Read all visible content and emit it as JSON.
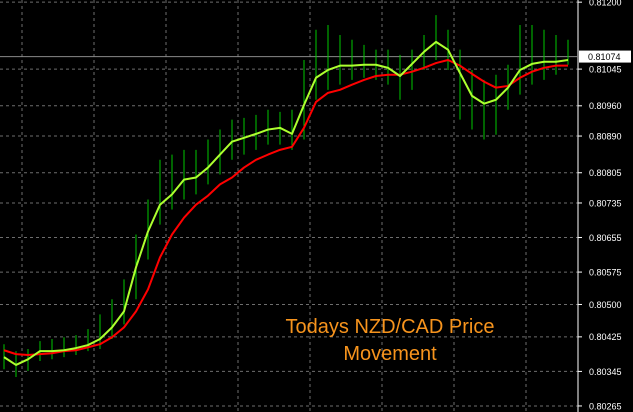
{
  "chart_data": {
    "type": "line",
    "annotation": "Todays NZD/CAD Price Movement",
    "categories": [
      null,
      null,
      null,
      null,
      null,
      null,
      null,
      null,
      null,
      null,
      null,
      null,
      null,
      null,
      null,
      null,
      null,
      null,
      null,
      null,
      null,
      null,
      null,
      null,
      null,
      null,
      null,
      null,
      null,
      null,
      null,
      null,
      null,
      null,
      null,
      null,
      null,
      null,
      null,
      null,
      null,
      null,
      null,
      null,
      null,
      null,
      null,
      null
    ],
    "bars": {
      "color": "#00c800",
      "high": [
        0.80408,
        0.80392,
        0.80397,
        0.80415,
        0.8042,
        0.80424,
        0.80429,
        0.80443,
        0.80477,
        0.80512,
        0.80558,
        0.80662,
        0.80743,
        0.80835,
        0.80847,
        0.80858,
        0.80858,
        0.80882,
        0.80905,
        0.80928,
        0.80932,
        0.80939,
        0.80951,
        0.80946,
        0.80951,
        0.81066,
        0.81136,
        0.81147,
        0.81124,
        0.81113,
        0.81101,
        0.8109,
        0.8109,
        0.81078,
        0.8109,
        0.81124,
        0.8117,
        0.81136,
        0.8109,
        0.81043,
        0.8102,
        0.81032,
        0.81055,
        0.81147,
        0.81147,
        0.81136,
        0.81124,
        0.81113
      ],
      "low": [
        0.8035,
        0.80332,
        0.80346,
        0.80369,
        0.80373,
        0.80378,
        0.80383,
        0.80392,
        0.80397,
        0.8042,
        0.80454,
        0.80512,
        0.80604,
        0.80685,
        0.8072,
        0.80743,
        0.80755,
        0.80778,
        0.80801,
        0.80835,
        0.80847,
        0.80858,
        0.8087,
        0.8087,
        0.80858,
        0.80882,
        0.80974,
        0.80997,
        0.81009,
        0.8102,
        0.81025,
        0.8102,
        0.81009,
        0.80974,
        0.80997,
        0.81043,
        0.81066,
        0.81043,
        0.80928,
        0.80905,
        0.80882,
        0.80893,
        0.80951,
        0.80986,
        0.81009,
        0.8102,
        0.81032,
        0.81055
      ]
    },
    "series": [
      {
        "color": "#adff2f",
        "values": [
          0.80378,
          0.8036,
          0.80373,
          0.80392,
          0.80392,
          0.80394,
          0.80399,
          0.80406,
          0.8042,
          0.80447,
          0.80484,
          0.80586,
          0.80669,
          0.80731,
          0.80755,
          0.80789,
          0.80794,
          0.80817,
          0.80847,
          0.80877,
          0.80886,
          0.80895,
          0.80905,
          0.80909,
          0.80895,
          0.80962,
          0.81025,
          0.81043,
          0.81053,
          0.81053,
          0.81055,
          0.81055,
          0.81048,
          0.81029,
          0.81057,
          0.81085,
          0.81108,
          0.8109,
          0.81036,
          0.80983,
          0.80965,
          0.80974,
          0.81002,
          0.81043,
          0.81057,
          0.81062,
          0.81062,
          0.81066
        ]
      },
      {
        "color": "#ff0000",
        "values": [
          0.80394,
          0.80385,
          0.80383,
          0.80385,
          0.80387,
          0.80392,
          0.80394,
          0.80401,
          0.80408,
          0.80424,
          0.80447,
          0.80484,
          0.80535,
          0.80609,
          0.80662,
          0.80701,
          0.80731,
          0.80752,
          0.80778,
          0.80794,
          0.80817,
          0.80835,
          0.80847,
          0.80858,
          0.80865,
          0.80909,
          0.80969,
          0.8099,
          0.80997,
          0.81009,
          0.8102,
          0.81029,
          0.81032,
          0.81032,
          0.81039,
          0.81048,
          0.81059,
          0.81066,
          0.81053,
          0.81034,
          0.81016,
          0.81002,
          0.81006,
          0.81025,
          0.81039,
          0.81048,
          0.81053,
          0.81053
        ]
      }
    ],
    "current_price": 0.81074,
    "ylim": [
      0.80251,
      0.81205
    ],
    "yticks": [
      {
        "value": 0.812,
        "label": "0.81200"
      },
      0.81045,
      {
        "value": 0.8096,
        "label": "0.80960"
      },
      {
        "value": 0.8089,
        "label": "0.80890"
      },
      0.80805,
      0.80735,
      0.80655,
      0.80575,
      {
        "value": 0.805,
        "label": "0.80500"
      },
      0.80425,
      0.80345,
      0.80265
    ],
    "grid": true
  }
}
